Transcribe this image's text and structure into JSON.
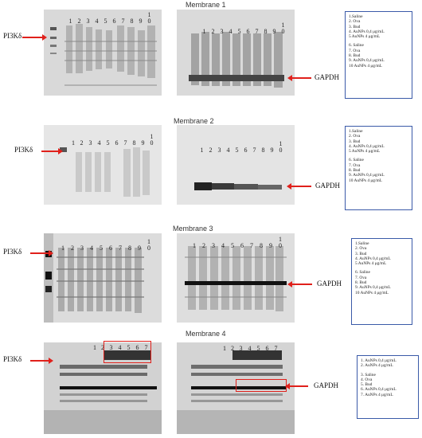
{
  "membranes": [
    {
      "title": "Membrane 1",
      "left_lanes": [
        "1",
        "2",
        "3",
        "4",
        "5",
        "6",
        "7",
        "8",
        "9",
        "1\n0"
      ],
      "right_lanes": [
        "1",
        "2",
        "3",
        "4",
        "5",
        "6",
        "7",
        "8",
        "9",
        "1\n0"
      ],
      "left_label": "PI3Kδ",
      "right_label": "GAPDH",
      "legend": [
        "1.Saline",
        "2. Ova",
        "3. Bud",
        "4. AuNPs 0,4 μg/mL",
        "5 AuNPs 4 μg/mL",
        "",
        "6. Saline",
        "7. Ova",
        "8. Bud",
        "9. AuNPs 0,4 μg/mL",
        "10 AuNPs 4 μg/mL"
      ]
    },
    {
      "title": "Membrane 2",
      "left_lanes": [
        "1",
        "2",
        "3",
        "4",
        "5",
        "6",
        "7",
        "8",
        "9",
        "1\n0"
      ],
      "right_lanes": [
        "1",
        "2",
        "3",
        "4",
        "5",
        "6",
        "7",
        "8",
        "9",
        "1\n0"
      ],
      "left_label": "PI3Kδ",
      "right_label": "GAPDH",
      "legend": [
        "1.Saline",
        "2. Ova",
        "3. Bud",
        "4. AuNPs 0,4 μg/mL",
        "5 AuNPs 4 μg/mL",
        "",
        "6. Saline",
        "7. Ova",
        "8. Bud",
        "9. AuNPs 0,4 μg/mL",
        "10 AuNPs 4 μg/mL"
      ]
    },
    {
      "title": "Membrane 3",
      "left_lanes": [
        "1",
        "2",
        "3",
        "4",
        "5",
        "6",
        "7",
        "8",
        "9",
        "1\n0"
      ],
      "right_lanes": [
        "1",
        "2",
        "3",
        "4",
        "5",
        "6",
        "7",
        "8",
        "9",
        "1\n0"
      ],
      "left_label": "PI3Kδ",
      "right_label": "GAPDH",
      "legend": [
        "1.Saline",
        "2. Ova",
        "3. Bud",
        "4. AuNPs 0,4 μg/mL",
        "5 AuNPs 4 μg/mL",
        "",
        "6. Saline",
        "7. Ova",
        "8. Bud",
        "9. AuNPs 0,4 μg/mL",
        "10 AuNPs 4 μg/mL"
      ]
    },
    {
      "title": "Membrane 4",
      "left_lanes": [
        "1",
        "2",
        "3",
        "4",
        "5",
        "6",
        "7"
      ],
      "right_lanes": [
        "1",
        "2",
        "3",
        "4",
        "5",
        "6",
        "7"
      ],
      "left_label": "PI3Kδ",
      "right_label": "GAPDH",
      "legend": [
        "1. AuNPs 0,4 μg/mL",
        "2. AuNPs 4 μg/mL",
        "",
        "3. Saline",
        "4. Ova",
        "5. Bud",
        "6. AuNPs 0,4 μg/mL",
        "7. AuNPs 4 μg/mL"
      ]
    }
  ]
}
